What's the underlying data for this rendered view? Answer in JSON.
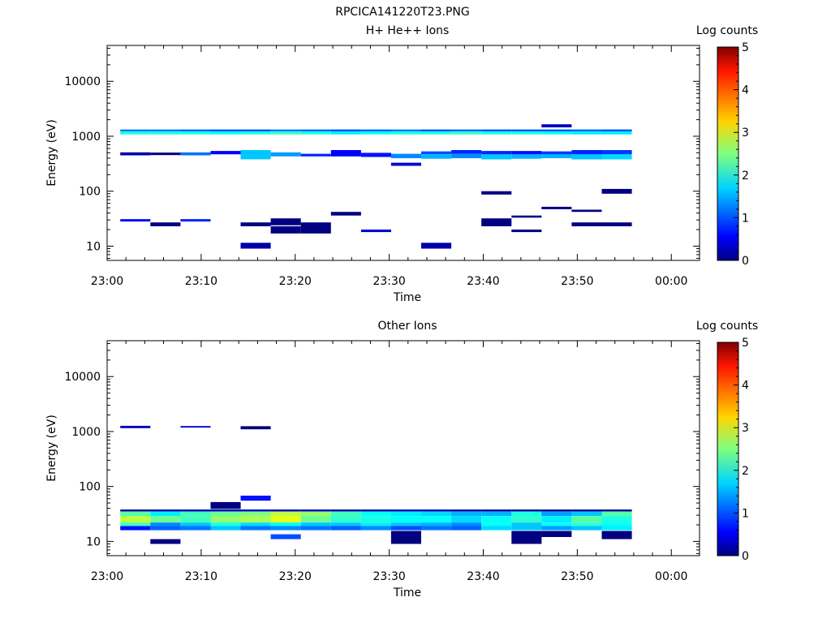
{
  "figure": {
    "title": "RPCICA141220T23.PNG"
  },
  "chart_data": [
    {
      "type": "heatmap",
      "title": "H+ He++ Ions",
      "xlabel": "Time",
      "ylabel": "Energy (eV)",
      "x_ticks": [
        "23:00",
        "23:10",
        "23:20",
        "23:30",
        "23:40",
        "23:50",
        "00:00"
      ],
      "x_range_minutes": [
        0,
        63
      ],
      "y_scale": "log",
      "y_ticks": [
        "10",
        "100",
        "1000",
        "10000"
      ],
      "y_range": [
        5.5,
        45000
      ],
      "colorbar": {
        "label": "Log counts",
        "ticks": [
          "0",
          "1",
          "2",
          "3",
          "4",
          "5"
        ],
        "range": [
          0,
          5
        ]
      },
      "time_bins": [
        [
          1.4,
          4.6
        ],
        [
          4.6,
          7.8
        ],
        [
          7.8,
          11
        ],
        [
          11,
          14.2
        ],
        [
          14.2,
          17.4
        ],
        [
          17.4,
          20.6
        ],
        [
          20.6,
          23.8
        ],
        [
          23.8,
          27
        ],
        [
          27,
          30.2
        ],
        [
          30.2,
          33.4
        ],
        [
          33.4,
          36.6
        ],
        [
          36.6,
          39.8
        ],
        [
          39.8,
          43
        ],
        [
          43,
          46.2
        ],
        [
          46.2,
          49.4
        ],
        [
          49.4,
          52.6
        ],
        [
          52.6,
          55.8
        ]
      ],
      "cells": [
        [
          0,
          1080,
          1230,
          2.0
        ],
        [
          1,
          1080,
          1230,
          2.0
        ],
        [
          2,
          1080,
          1230,
          2.0
        ],
        [
          3,
          1080,
          1230,
          1.9
        ],
        [
          4,
          1080,
          1230,
          2.0
        ],
        [
          5,
          1080,
          1230,
          2.1
        ],
        [
          6,
          1080,
          1230,
          2.0
        ],
        [
          7,
          1080,
          1230,
          1.8
        ],
        [
          8,
          1080,
          1230,
          1.9
        ],
        [
          9,
          1080,
          1230,
          2.0
        ],
        [
          10,
          1080,
          1230,
          2.0
        ],
        [
          11,
          1080,
          1230,
          2.1
        ],
        [
          12,
          1080,
          1230,
          2.0
        ],
        [
          13,
          1080,
          1230,
          2.0
        ],
        [
          14,
          1080,
          1230,
          1.9
        ],
        [
          15,
          1080,
          1230,
          1.8
        ],
        [
          16,
          1080,
          1230,
          1.8
        ],
        [
          0,
          1230,
          1330,
          1.2
        ],
        [
          1,
          1230,
          1330,
          1.2
        ],
        [
          2,
          1230,
          1330,
          1.1
        ],
        [
          3,
          1230,
          1330,
          1.0
        ],
        [
          4,
          1230,
          1330,
          1.0
        ],
        [
          5,
          1230,
          1330,
          1.2
        ],
        [
          6,
          1230,
          1330,
          1.1
        ],
        [
          7,
          1230,
          1330,
          1.0
        ],
        [
          8,
          1230,
          1330,
          1.1
        ],
        [
          9,
          1230,
          1330,
          1.2
        ],
        [
          10,
          1230,
          1330,
          1.0
        ],
        [
          11,
          1230,
          1330,
          1.1
        ],
        [
          12,
          1230,
          1330,
          1.0
        ],
        [
          13,
          1230,
          1330,
          1.0
        ],
        [
          14,
          1230,
          1330,
          1.0
        ],
        [
          15,
          1230,
          1330,
          1.1
        ],
        [
          16,
          1230,
          1330,
          1.0
        ],
        [
          2,
          450,
          510,
          1.2
        ],
        [
          3,
          470,
          540,
          0.6
        ],
        [
          4,
          380,
          560,
          1.6
        ],
        [
          5,
          430,
          510,
          1.4
        ],
        [
          6,
          430,
          480,
          0.8
        ],
        [
          7,
          430,
          560,
          0.6
        ],
        [
          8,
          420,
          500,
          0.7
        ],
        [
          9,
          400,
          480,
          1.3
        ],
        [
          10,
          390,
          470,
          1.5
        ],
        [
          11,
          400,
          480,
          1.3
        ],
        [
          12,
          380,
          470,
          1.6
        ],
        [
          13,
          390,
          470,
          1.5
        ],
        [
          14,
          400,
          480,
          1.5
        ],
        [
          15,
          380,
          470,
          1.6
        ],
        [
          16,
          380,
          470,
          1.7
        ],
        [
          10,
          470,
          530,
          1.0
        ],
        [
          11,
          480,
          560,
          0.8
        ],
        [
          12,
          470,
          540,
          0.8
        ],
        [
          13,
          470,
          540,
          0.7
        ],
        [
          14,
          470,
          530,
          0.9
        ],
        [
          15,
          470,
          560,
          0.8
        ],
        [
          16,
          470,
          560,
          0.9
        ],
        [
          0,
          450,
          510,
          0.2
        ],
        [
          1,
          455,
          505,
          0.0
        ],
        [
          9,
          290,
          330,
          0.4
        ],
        [
          4,
          9,
          11.5,
          0.2
        ],
        [
          10,
          9,
          11.5,
          0.2
        ],
        [
          14,
          1450,
          1650,
          0.3
        ],
        [
          0,
          28,
          31,
          0.7
        ],
        [
          1,
          23,
          27,
          0.0
        ],
        [
          2,
          28,
          31,
          0.8
        ],
        [
          4,
          23,
          27,
          0.0
        ],
        [
          5,
          24,
          32,
          0.0
        ],
        [
          5,
          17,
          23,
          0.0
        ],
        [
          6,
          17,
          27,
          0.0
        ],
        [
          7,
          36,
          42,
          0.0
        ],
        [
          8,
          18,
          20,
          0.4
        ],
        [
          12,
          23,
          32,
          0.0
        ],
        [
          13,
          18,
          20,
          0.0
        ],
        [
          15,
          23,
          27,
          0.0
        ],
        [
          16,
          23,
          27,
          0.0
        ],
        [
          16,
          90,
          110,
          0.0
        ],
        [
          15,
          42,
          46,
          0.0
        ],
        [
          14,
          47,
          52,
          0.0
        ],
        [
          12,
          87,
          100,
          0.0
        ],
        [
          13,
          33,
          36,
          0.0
        ]
      ]
    },
    {
      "type": "heatmap",
      "title": "Other Ions",
      "xlabel": "Time",
      "ylabel": "Energy (eV)",
      "x_ticks": [
        "23:00",
        "23:10",
        "23:20",
        "23:30",
        "23:40",
        "23:50",
        "00:00"
      ],
      "x_range_minutes": [
        0,
        63
      ],
      "y_scale": "log",
      "y_ticks": [
        "10",
        "100",
        "1000",
        "10000"
      ],
      "y_range": [
        5.5,
        45000
      ],
      "colorbar": {
        "label": "Log counts",
        "ticks": [
          "0",
          "1",
          "2",
          "3",
          "4",
          "5"
        ],
        "range": [
          0,
          5
        ]
      },
      "time_bins": [
        [
          1.4,
          4.6
        ],
        [
          4.6,
          7.8
        ],
        [
          7.8,
          11
        ],
        [
          11,
          14.2
        ],
        [
          14.2,
          17.4
        ],
        [
          17.4,
          20.6
        ],
        [
          20.6,
          23.8
        ],
        [
          23.8,
          27
        ],
        [
          27,
          30.2
        ],
        [
          30.2,
          33.4
        ],
        [
          33.4,
          36.6
        ],
        [
          36.6,
          39.8
        ],
        [
          39.8,
          43
        ],
        [
          43,
          46.2
        ],
        [
          46.2,
          49.4
        ],
        [
          49.4,
          52.6
        ],
        [
          52.6,
          55.8
        ]
      ],
      "cells": [
        [
          0,
          29,
          35,
          2.3
        ],
        [
          1,
          29,
          35,
          1.8
        ],
        [
          2,
          29,
          35,
          2.2
        ],
        [
          3,
          29,
          35,
          2.4
        ],
        [
          4,
          29,
          35,
          2.5
        ],
        [
          5,
          29,
          35,
          2.8
        ],
        [
          6,
          29,
          35,
          2.6
        ],
        [
          7,
          29,
          35,
          2.2
        ],
        [
          8,
          29,
          35,
          1.9
        ],
        [
          9,
          29,
          35,
          1.8
        ],
        [
          10,
          29,
          35,
          1.7
        ],
        [
          11,
          29,
          35,
          1.5
        ],
        [
          12,
          29,
          35,
          1.5
        ],
        [
          13,
          29,
          35,
          2.0
        ],
        [
          14,
          29,
          35,
          1.4
        ],
        [
          15,
          29,
          35,
          1.6
        ],
        [
          16,
          29,
          35,
          2.3
        ],
        [
          0,
          22,
          29,
          2.8
        ],
        [
          1,
          22,
          29,
          2.4
        ],
        [
          2,
          22,
          29,
          2.2
        ],
        [
          3,
          22,
          29,
          2.6
        ],
        [
          4,
          22,
          29,
          2.7
        ],
        [
          5,
          22,
          29,
          3.0
        ],
        [
          6,
          22,
          29,
          2.4
        ],
        [
          7,
          22,
          29,
          2.1
        ],
        [
          8,
          22,
          29,
          2.0
        ],
        [
          9,
          22,
          29,
          1.9
        ],
        [
          10,
          22,
          29,
          1.9
        ],
        [
          11,
          22,
          29,
          1.7
        ],
        [
          12,
          22,
          29,
          1.9
        ],
        [
          13,
          22,
          29,
          2.1
        ],
        [
          14,
          22,
          29,
          1.8
        ],
        [
          15,
          22,
          29,
          2.3
        ],
        [
          16,
          22,
          29,
          2.0
        ],
        [
          0,
          19,
          22,
          2.2
        ],
        [
          1,
          19,
          22,
          1.3
        ],
        [
          2,
          19,
          22,
          1.6
        ],
        [
          3,
          19,
          22,
          2.0
        ],
        [
          4,
          19,
          22,
          1.7
        ],
        [
          5,
          19,
          22,
          1.9
        ],
        [
          6,
          19,
          22,
          1.6
        ],
        [
          7,
          19,
          22,
          1.6
        ],
        [
          8,
          19,
          22,
          1.8
        ],
        [
          9,
          19,
          22,
          1.6
        ],
        [
          10,
          19,
          22,
          1.5
        ],
        [
          11,
          19,
          22,
          1.3
        ],
        [
          12,
          19,
          22,
          1.9
        ],
        [
          13,
          19,
          22,
          1.6
        ],
        [
          14,
          19,
          22,
          1.9
        ],
        [
          15,
          19,
          22,
          2.1
        ],
        [
          16,
          19,
          22,
          1.9
        ],
        [
          0,
          16,
          19,
          0.7
        ],
        [
          1,
          16,
          19,
          1.1
        ],
        [
          2,
          16,
          19,
          1.2
        ],
        [
          3,
          16,
          19,
          1.6
        ],
        [
          4,
          16,
          19,
          1.2
        ],
        [
          5,
          16,
          19,
          1.3
        ],
        [
          6,
          16,
          19,
          1.2
        ],
        [
          7,
          16,
          19,
          1.1
        ],
        [
          8,
          16,
          19,
          1.3
        ],
        [
          9,
          16,
          19,
          1.0
        ],
        [
          10,
          16,
          19,
          1.2
        ],
        [
          11,
          16,
          19,
          1.1
        ],
        [
          12,
          16,
          19,
          1.7
        ],
        [
          13,
          16,
          19,
          1.6
        ],
        [
          14,
          16,
          19,
          1.4
        ],
        [
          15,
          16,
          19,
          1.6
        ],
        [
          16,
          16,
          19,
          1.8
        ],
        [
          0,
          35,
          38,
          0.1
        ],
        [
          1,
          35,
          38,
          0.2
        ],
        [
          2,
          35,
          38,
          0.3
        ],
        [
          3,
          35,
          38,
          0.3
        ],
        [
          4,
          35,
          38,
          0.4
        ],
        [
          5,
          35,
          38,
          0.3
        ],
        [
          6,
          35,
          38,
          0.3
        ],
        [
          7,
          35,
          38,
          0.2
        ],
        [
          8,
          35,
          38,
          0.2
        ],
        [
          9,
          35,
          38,
          0.3
        ],
        [
          10,
          35,
          38,
          0.3
        ],
        [
          11,
          35,
          38,
          0.2
        ],
        [
          12,
          35,
          38,
          0.2
        ],
        [
          13,
          35,
          38,
          0.1
        ],
        [
          14,
          35,
          38,
          0.1
        ],
        [
          15,
          35,
          38,
          0.1
        ],
        [
          16,
          35,
          38,
          0.1
        ],
        [
          1,
          9,
          11,
          0.0
        ],
        [
          5,
          11,
          13.5,
          1.0
        ],
        [
          9,
          9,
          15.5,
          0.0
        ],
        [
          13,
          9,
          15.5,
          0.0
        ],
        [
          14,
          12,
          15.5,
          0.0
        ],
        [
          16,
          11,
          15.5,
          0.0
        ],
        [
          3,
          39,
          52,
          0.0
        ],
        [
          4,
          55,
          68,
          0.7
        ],
        [
          0,
          1150,
          1270,
          0.3
        ],
        [
          2,
          1180,
          1260,
          0.5
        ],
        [
          4,
          1100,
          1250,
          0.0
        ]
      ]
    }
  ]
}
